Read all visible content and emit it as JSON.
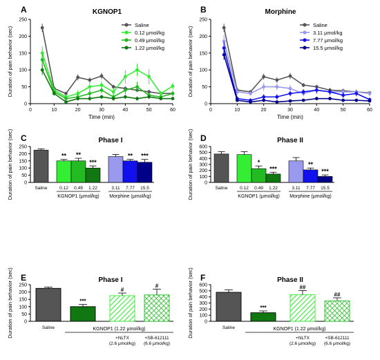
{
  "figure": {
    "panels": [
      "A",
      "B",
      "C",
      "D",
      "E",
      "F"
    ]
  },
  "colors": {
    "saline": "#555555",
    "k012": "#33ee33",
    "k049": "#22bb22",
    "k122": "#117711",
    "m311": "#9999ee",
    "m777": "#1111ee",
    "m155": "#000088"
  },
  "chart_data": [
    {
      "panel": "A",
      "type": "line",
      "title": "KGNOP1",
      "xlabel": "Time (min)",
      "ylabel": "Duration of pain behavior (sec)",
      "xlim": [
        0,
        60
      ],
      "ylim": [
        0,
        250
      ],
      "xticks": [
        "0",
        "10",
        "20",
        "30",
        "40",
        "50",
        "60"
      ],
      "yticks": [
        "0",
        "50",
        "100",
        "150",
        "200",
        "250"
      ],
      "legend_position": "top-right",
      "x": [
        5,
        10,
        15,
        20,
        25,
        30,
        35,
        40,
        45,
        50,
        55,
        60
      ],
      "series": [
        {
          "name": "Saline",
          "color": "#555555",
          "values": [
            225,
            45,
            30,
            78,
            70,
            82,
            50,
            45,
            40,
            35,
            30,
            30
          ],
          "err": [
            12,
            8,
            5,
            9,
            8,
            9,
            6,
            6,
            6,
            6,
            5,
            5
          ]
        },
        {
          "name": "0.12 μmol/kg",
          "color": "#33ee33",
          "values": [
            150,
            40,
            20,
            30,
            50,
            55,
            35,
            80,
            100,
            80,
            30,
            52
          ],
          "err": [
            20,
            8,
            5,
            10,
            15,
            12,
            10,
            20,
            18,
            22,
            8,
            10
          ]
        },
        {
          "name": "0.49 μmol/kg",
          "color": "#22bb22",
          "values": [
            130,
            35,
            15,
            20,
            30,
            40,
            20,
            40,
            50,
            25,
            20,
            30
          ],
          "err": [
            18,
            6,
            5,
            8,
            10,
            10,
            8,
            12,
            15,
            8,
            6,
            8
          ]
        },
        {
          "name": "1.22 μmol/kg",
          "color": "#117711",
          "values": [
            100,
            30,
            5,
            15,
            15,
            20,
            15,
            20,
            15,
            20,
            15,
            15
          ],
          "err": [
            15,
            6,
            3,
            6,
            6,
            6,
            6,
            6,
            6,
            6,
            5,
            5
          ]
        }
      ]
    },
    {
      "panel": "B",
      "type": "line",
      "title": "Morphine",
      "xlabel": "Time (min)",
      "ylabel": "Duration of pain behavior (sec)",
      "xlim": [
        0,
        60
      ],
      "ylim": [
        0,
        250
      ],
      "xticks": [
        "0",
        "10",
        "20",
        "30",
        "40",
        "50",
        "60"
      ],
      "yticks": [
        "0",
        "50",
        "100",
        "150",
        "200",
        "250"
      ],
      "legend_position": "top-right",
      "x": [
        5,
        10,
        15,
        20,
        25,
        30,
        35,
        40,
        45,
        50,
        55,
        60
      ],
      "series": [
        {
          "name": "Saline",
          "color": "#555555",
          "values": [
            225,
            40,
            35,
            80,
            70,
            82,
            55,
            50,
            40,
            38,
            35,
            32
          ],
          "err": [
            12,
            8,
            5,
            9,
            8,
            9,
            6,
            6,
            6,
            6,
            5,
            5
          ]
        },
        {
          "name": "3.11 μmol/kg",
          "color": "#9999ee",
          "values": [
            185,
            35,
            30,
            50,
            50,
            45,
            30,
            40,
            35,
            35,
            35,
            30
          ],
          "err": [
            18,
            8,
            6,
            12,
            10,
            10,
            8,
            10,
            8,
            10,
            8,
            8
          ]
        },
        {
          "name": "7.77 μmol/kg",
          "color": "#1111ee",
          "values": [
            165,
            15,
            10,
            20,
            20,
            30,
            35,
            40,
            35,
            25,
            30,
            12
          ],
          "err": [
            18,
            6,
            5,
            8,
            8,
            8,
            8,
            10,
            10,
            8,
            8,
            6
          ]
        },
        {
          "name": "15.5 μmol/kg",
          "color": "#000088",
          "values": [
            145,
            10,
            5,
            10,
            5,
            8,
            10,
            15,
            15,
            10,
            10,
            8
          ],
          "err": [
            15,
            4,
            3,
            4,
            3,
            4,
            4,
            5,
            5,
            4,
            4,
            3
          ]
        }
      ]
    },
    {
      "panel": "C",
      "type": "bar",
      "title": "Phase I",
      "ylabel": "Duration of pain behavior (sec)",
      "ylim": [
        0,
        250
      ],
      "yticks": [
        "0",
        "50",
        "100",
        "150",
        "200",
        "250"
      ],
      "categories": [
        "Saline",
        "0.12",
        "0.49",
        "1.22",
        "3.11",
        "7.77",
        "15.5"
      ],
      "values": [
        225,
        150,
        150,
        100,
        180,
        150,
        140
      ],
      "err": [
        8,
        10,
        18,
        15,
        15,
        10,
        20
      ],
      "colors": [
        "#555555",
        "#33ee33",
        "#22bb22",
        "#117711",
        "#9999ee",
        "#1111ee",
        "#000088"
      ],
      "sig": [
        "",
        "**",
        "**",
        "***",
        "",
        "**",
        "***"
      ],
      "groups": [
        {
          "label": "KGNOP1 (μmol/kg)",
          "from": 1,
          "to": 3
        },
        {
          "label": "Morphine (μmol/kg)",
          "from": 4,
          "to": 6
        }
      ]
    },
    {
      "panel": "D",
      "type": "bar",
      "title": "Phase II",
      "ylabel": "Duration of pain behavior (sec)",
      "ylim": [
        0,
        600
      ],
      "yticks": [
        "0",
        "100",
        "200",
        "300",
        "400",
        "500",
        "600"
      ],
      "categories": [
        "Saline",
        "0.12",
        "0.49",
        "1.22",
        "3.11",
        "7.77",
        "15.5"
      ],
      "values": [
        475,
        465,
        230,
        140,
        360,
        210,
        100
      ],
      "err": [
        40,
        50,
        45,
        30,
        55,
        30,
        25
      ],
      "colors": [
        "#555555",
        "#33ee33",
        "#22bb22",
        "#117711",
        "#9999ee",
        "#1111ee",
        "#000088"
      ],
      "sig": [
        "",
        "",
        "*",
        "***",
        "",
        "**",
        "***"
      ],
      "groups": [
        {
          "label": "KGNOP1 (μmol/kg)",
          "from": 1,
          "to": 3
        },
        {
          "label": "Morphine (μmol/kg)",
          "from": 4,
          "to": 6
        }
      ]
    },
    {
      "panel": "E",
      "type": "bar",
      "title": "Phase I",
      "ylabel": "Duration of pain behavior (sec)",
      "ylim": [
        0,
        250
      ],
      "yticks": [
        "0",
        "50",
        "100",
        "150",
        "200",
        "250"
      ],
      "categories": [
        "Saline",
        "KGNOP1",
        "+NLTX (2.6 μmol/kg)",
        "+SB-612111 (6.6 μmol/kg)"
      ],
      "values": [
        225,
        100,
        175,
        180
      ],
      "err": [
        8,
        15,
        18,
        40
      ],
      "colors": [
        "#555555",
        "#117711",
        "#33ee33",
        "#22bb22"
      ],
      "fills": [
        "solid",
        "solid",
        "hatch",
        "cross"
      ],
      "sig": [
        "",
        "***",
        "#",
        "#"
      ],
      "bar_labels": [
        "Saline",
        "",
        "+NLTX",
        "+SB-612111"
      ],
      "bar_sublabels": [
        "",
        "",
        "(2.6 μmol/kg)",
        "(6.6 μmol/kg)"
      ],
      "group_label": "KGNOP1 (1.22 μmol/kg)"
    },
    {
      "panel": "F",
      "type": "bar",
      "title": "Phase II",
      "ylabel": "Duration of pain behavior (sec)",
      "ylim": [
        0,
        600
      ],
      "yticks": [
        "0",
        "100",
        "200",
        "300",
        "400",
        "500",
        "600"
      ],
      "categories": [
        "Saline",
        "KGNOP1",
        "+NLTX (2.6 μmol/kg)",
        "+SB-612111 (6.6 μmol/kg)"
      ],
      "values": [
        475,
        140,
        435,
        335
      ],
      "err": [
        40,
        30,
        70,
        50
      ],
      "colors": [
        "#555555",
        "#117711",
        "#33ee33",
        "#22bb22"
      ],
      "fills": [
        "solid",
        "solid",
        "hatch",
        "cross"
      ],
      "sig": [
        "",
        "***",
        "##",
        "##"
      ],
      "bar_labels": [
        "Saline",
        "",
        "+NLTX",
        "+SB-612111"
      ],
      "bar_sublabels": [
        "",
        "",
        "(2.6 μmol/kg)",
        "(6.6 μmol/kg)"
      ],
      "group_label": "KGNOP1 (1.22 μmol/kg)"
    }
  ]
}
